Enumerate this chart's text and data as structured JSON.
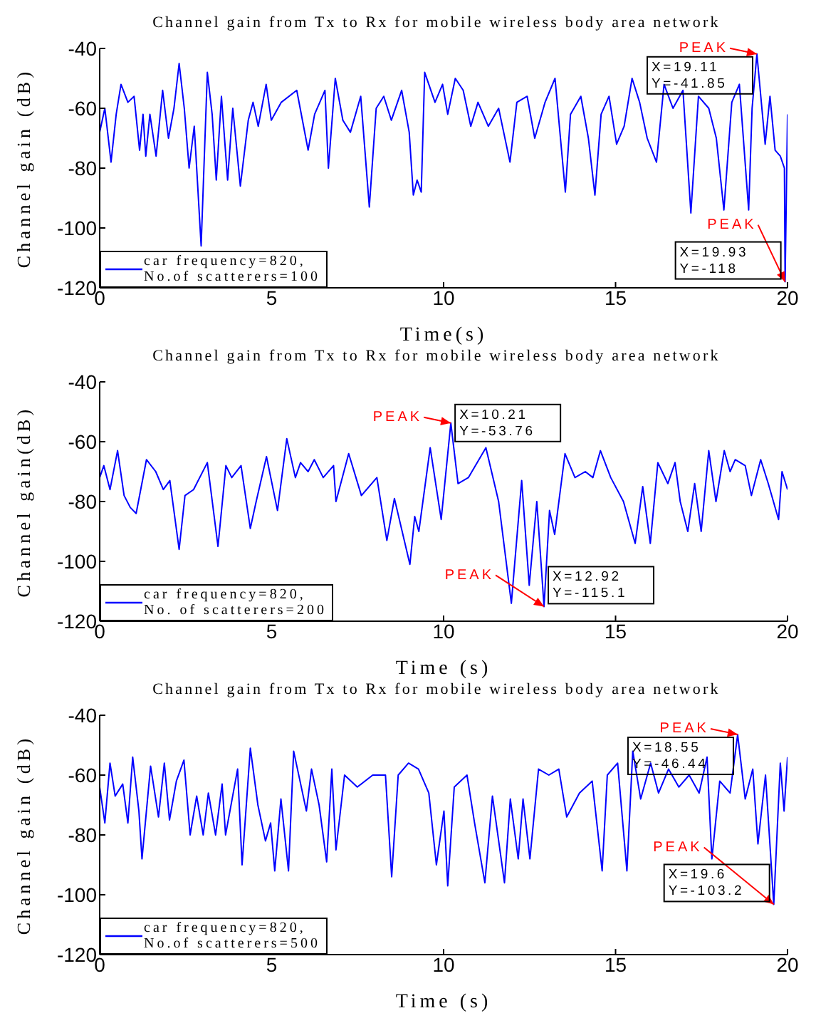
{
  "chart_data": [
    {
      "type": "line",
      "title": "Channel gain from Tx to Rx for mobile wireless body area network",
      "xlabel": "Time(s)",
      "ylabel": "Channel gain (dB)",
      "xlim": [
        0,
        20
      ],
      "ylim": [
        -120,
        -40
      ],
      "xticks": [
        0,
        5,
        10,
        15,
        20
      ],
      "yticks": [
        -120,
        -100,
        -80,
        -60,
        -40
      ],
      "legend": "bottom left",
      "series": [
        {
          "name": "car frequency=820,\nNo.of scatterers=100",
          "color": "#0000ff",
          "x": [
            0,
            0.15,
            0.33,
            0.48,
            0.62,
            0.82,
            1.0,
            1.16,
            1.26,
            1.34,
            1.46,
            1.64,
            1.83,
            2.0,
            2.16,
            2.31,
            2.46,
            2.6,
            2.75,
            2.95,
            3.13,
            3.27,
            3.39,
            3.54,
            3.72,
            3.87,
            4.09,
            4.32,
            4.46,
            4.61,
            4.84,
            4.99,
            5.28,
            5.73,
            6.06,
            6.25,
            6.55,
            6.65,
            6.85,
            7.07,
            7.29,
            7.59,
            7.84,
            8.04,
            8.26,
            8.48,
            8.78,
            9.0,
            9.12,
            9.23,
            9.35,
            9.45,
            9.75,
            9.97,
            10.12,
            10.34,
            10.57,
            10.79,
            11.0,
            11.3,
            11.6,
            11.93,
            12.13,
            12.43,
            12.65,
            12.95,
            13.24,
            13.54,
            13.69,
            13.99,
            14.21,
            14.4,
            14.58,
            14.81,
            15.03,
            15.25,
            15.48,
            15.7,
            15.92,
            16.19,
            16.41,
            16.67,
            16.96,
            17.19,
            17.41,
            17.71,
            17.93,
            18.15,
            18.38,
            18.6,
            18.87,
            18.97,
            19.11,
            19.35,
            19.49,
            19.64,
            19.79,
            19.91,
            19.93,
            20
          ],
          "values": [
            -68,
            -60,
            -78,
            -62,
            -52,
            -58,
            -56,
            -74,
            -62,
            -76,
            -62,
            -76,
            -54,
            -70,
            -60,
            -45,
            -60,
            -80,
            -66,
            -106,
            -48,
            -62,
            -84,
            -56,
            -84,
            -60,
            -86,
            -64,
            -58,
            -66,
            -52,
            -64,
            -58,
            -54,
            -74,
            -62,
            -54,
            -80,
            -50,
            -64,
            -68,
            -56,
            -93,
            -60,
            -56,
            -64,
            -54,
            -68,
            -89,
            -84,
            -88,
            -48,
            -58,
            -52,
            -62,
            -50,
            -54,
            -66,
            -58,
            -66,
            -60,
            -78,
            -58,
            -56,
            -70,
            -58,
            -50,
            -88,
            -62,
            -56,
            -70,
            -89,
            -62,
            -56,
            -72,
            -66,
            -50,
            -58,
            -70,
            -78,
            -52,
            -60,
            -54,
            -95,
            -56,
            -60,
            -70,
            -94,
            -58,
            -52,
            -94,
            -60,
            -41.85,
            -72,
            -56,
            -74,
            -76,
            -80,
            -118,
            -62
          ]
        }
      ],
      "annotations": [
        {
          "text": "PEAK",
          "x": 19.11,
          "y": -41.85
        },
        {
          "text": "X=19.11\nY=-41.85",
          "x": 19.11,
          "y": -41.85
        },
        {
          "text": "PEAK",
          "x": 19.93,
          "y": -118
        },
        {
          "text": "X=19.93\nY=-118",
          "x": 19.93,
          "y": -118
        }
      ]
    },
    {
      "type": "line",
      "title": "Channel gain from Tx to Rx for mobile wireless body area network",
      "xlabel": "Time (s)",
      "ylabel": "Channel gain(dB)",
      "xlim": [
        0,
        20
      ],
      "ylim": [
        -120,
        -40
      ],
      "xticks": [
        0,
        5,
        10,
        15,
        20
      ],
      "yticks": [
        -120,
        -100,
        -80,
        -60,
        -40
      ],
      "legend": "bottom left",
      "series": [
        {
          "name": "car frequency=820,\nNo. of scatterers=200",
          "color": "#0000ff",
          "x": [
            0,
            0.12,
            0.3,
            0.52,
            0.71,
            0.89,
            1.06,
            1.36,
            1.63,
            1.85,
            2.04,
            2.31,
            2.48,
            2.73,
            3.13,
            3.44,
            3.67,
            3.84,
            4.11,
            4.38,
            4.55,
            4.85,
            5.17,
            5.44,
            5.69,
            5.84,
            6.06,
            6.24,
            6.5,
            6.8,
            6.87,
            7.24,
            7.61,
            8.06,
            8.35,
            8.57,
            9.02,
            9.16,
            9.28,
            9.61,
            9.93,
            10.21,
            10.42,
            10.72,
            11.23,
            11.6,
            11.97,
            12.27,
            12.49,
            12.71,
            12.92,
            13.08,
            13.23,
            13.53,
            13.82,
            14.12,
            14.34,
            14.56,
            14.86,
            15.23,
            15.57,
            15.79,
            16.01,
            16.23,
            16.52,
            16.73,
            16.88,
            17.1,
            17.3,
            17.49,
            17.71,
            17.92,
            18.16,
            18.33,
            18.48,
            18.77,
            18.95,
            19.22,
            19.44,
            19.74,
            19.84,
            20
          ],
          "values": [
            -72,
            -68,
            -76,
            -63,
            -78,
            -82,
            -84,
            -66,
            -70,
            -76,
            -73,
            -96,
            -78,
            -76,
            -67,
            -95,
            -68,
            -72,
            -68,
            -89,
            -80,
            -65,
            -83,
            -59,
            -72,
            -67,
            -70,
            -66,
            -72,
            -68,
            -80,
            -64,
            -78,
            -72,
            -93,
            -79,
            -101,
            -85,
            -90,
            -62,
            -86,
            -53.76,
            -74,
            -72,
            -62,
            -80,
            -114,
            -73,
            -108,
            -80,
            -115.1,
            -83,
            -91,
            -64,
            -72,
            -70,
            -72,
            -63,
            -72,
            -80,
            -94,
            -75,
            -94,
            -67,
            -74,
            -67,
            -80,
            -90,
            -74,
            -90,
            -63,
            -80,
            -63,
            -70,
            -66,
            -68,
            -78,
            -66,
            -74,
            -86,
            -70,
            -76
          ]
        }
      ],
      "annotations": [
        {
          "text": "PEAK",
          "x": 10.21,
          "y": -53.76
        },
        {
          "text": "X=10.21\nY=-53.76",
          "x": 10.21,
          "y": -53.76
        },
        {
          "text": "PEAK",
          "x": 12.92,
          "y": -115.1
        },
        {
          "text": "X=12.92\nY=-115.1",
          "x": 12.92,
          "y": -115.1
        }
      ]
    },
    {
      "type": "line",
      "title": "Channel gain from Tx to Rx for mobile wireless body area network",
      "xlabel": "Time (s)",
      "ylabel": "Channel gain (dB)",
      "xlim": [
        0,
        20
      ],
      "ylim": [
        -120,
        -40
      ],
      "xticks": [
        0,
        5,
        10,
        15,
        20
      ],
      "yticks": [
        -120,
        -100,
        -80,
        -60,
        -40
      ],
      "legend": "bottom left",
      "series": [
        {
          "name": "car frequency=820,\nNo.of scatterers=500",
          "color": "#0000ff",
          "x": [
            0,
            0.15,
            0.3,
            0.45,
            0.67,
            0.82,
            0.96,
            1.14,
            1.23,
            1.48,
            1.71,
            1.88,
            2.03,
            2.23,
            2.45,
            2.63,
            2.82,
            3.01,
            3.16,
            3.37,
            3.56,
            3.66,
            4.01,
            4.14,
            4.38,
            4.6,
            4.82,
            4.97,
            5.09,
            5.27,
            5.49,
            5.64,
            6.01,
            6.16,
            6.38,
            6.6,
            6.75,
            6.87,
            7.12,
            7.49,
            7.94,
            8.31,
            8.49,
            8.68,
            8.98,
            9.27,
            9.57,
            9.79,
            10.01,
            10.12,
            10.31,
            10.68,
            10.9,
            11.2,
            11.42,
            11.77,
            11.94,
            12.17,
            12.31,
            12.51,
            12.76,
            13.06,
            13.35,
            13.58,
            13.95,
            14.32,
            14.61,
            14.76,
            15.06,
            15.33,
            15.5,
            15.73,
            16.02,
            16.25,
            16.54,
            16.84,
            17.14,
            17.43,
            17.66,
            17.8,
            18.03,
            18.33,
            18.55,
            18.77,
            18.99,
            19.14,
            19.36,
            19.6,
            19.79,
            19.9,
            20
          ],
          "values": [
            -64,
            -76,
            -56,
            -67,
            -63,
            -76,
            -54,
            -72,
            -88,
            -57,
            -74,
            -56,
            -75,
            -62,
            -55,
            -80,
            -67,
            -80,
            -66,
            -80,
            -63,
            -80,
            -58,
            -90,
            -51,
            -70,
            -82,
            -76,
            -92,
            -68,
            -92,
            -52,
            -72,
            -58,
            -70,
            -89,
            -58,
            -85,
            -60,
            -64,
            -60,
            -60,
            -94,
            -60,
            -56,
            -58,
            -66,
            -90,
            -72,
            -97,
            -64,
            -60,
            -76,
            -96,
            -67,
            -96,
            -68,
            -88,
            -68,
            -88,
            -58,
            -60,
            -58,
            -74,
            -66,
            -62,
            -92,
            -60,
            -56,
            -92,
            -52,
            -68,
            -56,
            -66,
            -58,
            -64,
            -60,
            -66,
            -54,
            -88,
            -62,
            -66,
            -46.44,
            -68,
            -58,
            -83,
            -60,
            -103.2,
            -56,
            -72,
            -54
          ]
        }
      ],
      "annotations": [
        {
          "text": "PEAK",
          "x": 18.55,
          "y": -46.44
        },
        {
          "text": "X=18.55\nY=-46.44",
          "x": 18.55,
          "y": -46.44
        },
        {
          "text": "PEAK",
          "x": 19.6,
          "y": -103.2
        },
        {
          "text": "X=19.6\nY=-103.2",
          "x": 19.6,
          "y": -103.2
        }
      ]
    }
  ]
}
